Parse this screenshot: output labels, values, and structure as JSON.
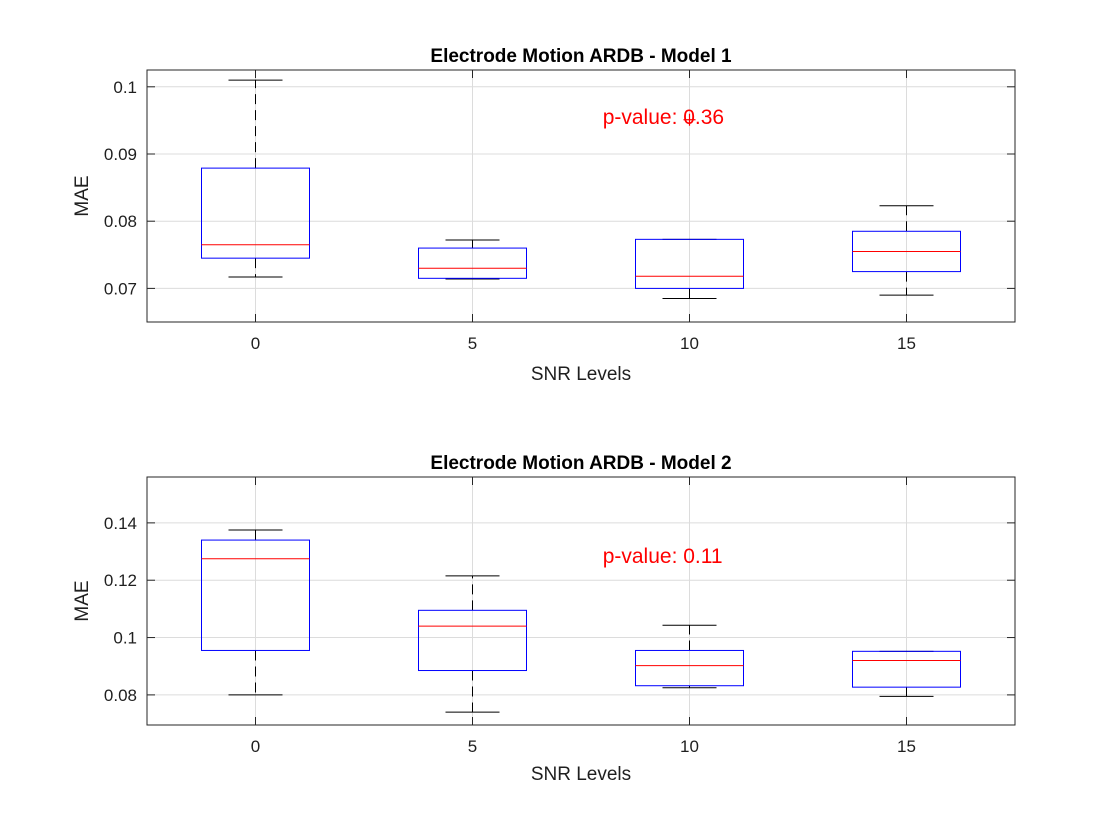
{
  "figure": {
    "background": "#ffffff"
  },
  "colors": {
    "box": "#0000ff",
    "median": "#ff0000",
    "whisker": "#000000",
    "outlier": "#ff0000",
    "annotation": "#ff0000",
    "grid": "#dcdcdc"
  },
  "chart_data": [
    {
      "type": "box",
      "title": "Electrode Motion ARDB - Model 1",
      "xlabel": "SNR Levels",
      "ylabel": "MAE",
      "categories": [
        "0",
        "5",
        "10",
        "15"
      ],
      "ylim": [
        0.065,
        0.1025
      ],
      "yticks": [
        0.07,
        0.08,
        0.09,
        0.1
      ],
      "ytick_labels": [
        "0.07",
        "0.08",
        "0.09",
        "0.1"
      ],
      "grid": true,
      "annotation": {
        "text": "p-value: 0.36",
        "x": 2.6,
        "y": 0.0955
      },
      "boxes": [
        {
          "category": "0",
          "whisker_low": 0.0717,
          "q1": 0.0745,
          "median": 0.0765,
          "q3": 0.0879,
          "whisker_high": 0.101,
          "outliers": []
        },
        {
          "category": "5",
          "whisker_low": 0.0714,
          "q1": 0.0715,
          "median": 0.073,
          "q3": 0.076,
          "whisker_high": 0.0772,
          "outliers": []
        },
        {
          "category": "10",
          "whisker_low": 0.0685,
          "q1": 0.07,
          "median": 0.0718,
          "q3": 0.0773,
          "whisker_high": 0.0773,
          "outliers": [
            0.0951
          ]
        },
        {
          "category": "15",
          "whisker_low": 0.069,
          "q1": 0.0725,
          "median": 0.0755,
          "q3": 0.0785,
          "whisker_high": 0.0823,
          "outliers": []
        }
      ]
    },
    {
      "type": "box",
      "title": "Electrode Motion ARDB - Model 2",
      "xlabel": "SNR Levels",
      "ylabel": "MAE",
      "categories": [
        "0",
        "5",
        "10",
        "15"
      ],
      "ylim": [
        0.0695,
        0.156
      ],
      "yticks": [
        0.08,
        0.1,
        0.12,
        0.14
      ],
      "ytick_labels": [
        "0.08",
        "0.1",
        "0.12",
        "0.14"
      ],
      "grid": true,
      "annotation": {
        "text": "p-value: 0.11",
        "x": 2.6,
        "y": 0.1285
      },
      "boxes": [
        {
          "category": "0",
          "whisker_low": 0.08,
          "q1": 0.0955,
          "median": 0.1275,
          "q3": 0.134,
          "whisker_high": 0.1375,
          "outliers": []
        },
        {
          "category": "5",
          "whisker_low": 0.074,
          "q1": 0.0885,
          "median": 0.104,
          "q3": 0.1095,
          "whisker_high": 0.1215,
          "outliers": []
        },
        {
          "category": "10",
          "whisker_low": 0.0825,
          "q1": 0.0832,
          "median": 0.0902,
          "q3": 0.0955,
          "whisker_high": 0.1043,
          "outliers": []
        },
        {
          "category": "15",
          "whisker_low": 0.0795,
          "q1": 0.0827,
          "median": 0.092,
          "q3": 0.0952,
          "whisker_high": 0.0952,
          "outliers": []
        }
      ]
    }
  ]
}
